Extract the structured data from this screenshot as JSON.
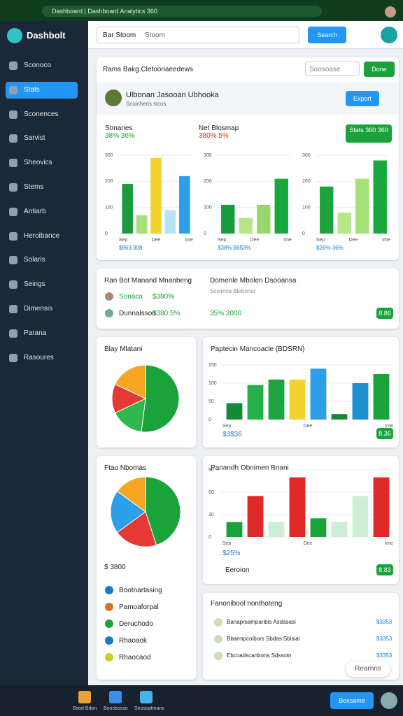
{
  "browser": {
    "url": "Dashboard | Dashboard Analytics 360"
  },
  "sidebar": {
    "logo": "Dashbolt",
    "items": [
      "Sconoco",
      "Stats",
      "Sconences",
      "Sarvist",
      "Sheovics",
      "Stems",
      "Antiarb",
      "Heroibance",
      "Solaris",
      "Seings",
      "Dimensis",
      "Parana",
      "Rasoures"
    ]
  },
  "topbar": {
    "search_label": "Bar Stoom",
    "search_placeholder": "Stoom",
    "search_button": "Search"
  },
  "overview": {
    "breadcrumb": "Rams Bakg Cletooriaeedews",
    "filter_placeholder": "Soosoase",
    "done": "Done",
    "profile_name": "Ulbonan Jasooan Ubhooka",
    "profile_sub": "Scuicheris sicus",
    "export": "Export",
    "legend": [
      {
        "name": "Sonaries",
        "values": "38% 36%"
      },
      {
        "name": "Net Blosmap",
        "values": "380% 5%"
      }
    ],
    "badge": "Stats 360 360",
    "charts": [
      {
        "ylim": [
          0,
          300
        ],
        "yticks": [
          0,
          100,
          200,
          300
        ],
        "values": [
          190,
          70,
          290,
          90,
          220
        ],
        "colors": [
          "#1a9c3e",
          "#a8e07a",
          "#f2d22e",
          "#b7e3f5",
          "#2d9ee8"
        ],
        "x_labels": [
          "Sep",
          "Dee",
          "Ime"
        ],
        "footer": "$863 308"
      },
      {
        "ylim": [
          0,
          300
        ],
        "yticks": [
          0,
          100,
          200,
          300
        ],
        "values": [
          110,
          60,
          110,
          210
        ],
        "colors": [
          "#1a9c3e",
          "#b6e58a",
          "#9bd66b",
          "#18a83e"
        ],
        "x_labels": [
          "Sep",
          "Dee",
          "Ime"
        ],
        "footer": "$38% $6$3%"
      },
      {
        "ylim": [
          0,
          300
        ],
        "yticks": [
          0,
          100,
          200,
          300
        ],
        "values": [
          180,
          80,
          210,
          280
        ],
        "colors": [
          "#1ea33e",
          "#b6e58a",
          "#a6e07a",
          "#18a83e"
        ],
        "x_labels": [
          "Sep",
          "Dee",
          "Ime"
        ],
        "footer": "$26% 36%"
      }
    ]
  },
  "managers": {
    "title": "Ran Bot Manand Mnanbeng",
    "rows": [
      {
        "name": "Sonaca",
        "value": "$380%"
      },
      {
        "name": "Dunnalsson",
        "value": "$380 5%"
      }
    ],
    "right_title": "Domenle Mbolen Dsooansa",
    "right_sub": "Scoimoa Blebonot",
    "right_value": "35% 3000",
    "badge": "8.86"
  },
  "pie_card": {
    "title": "Blay Mlatani",
    "values": [
      52,
      16,
      14,
      18
    ],
    "colors": [
      "#1aa33a",
      "#2fb84d",
      "#e53935",
      "#f5a623"
    ]
  },
  "bar_card": {
    "title": "Paptecin Mancoacle (BDSRN)",
    "ylim": [
      0,
      150
    ],
    "yticks": [
      0,
      50,
      100,
      150
    ],
    "values": [
      45,
      95,
      110,
      110,
      140,
      15,
      100,
      125
    ],
    "colors": [
      "#138a3a",
      "#25b14a",
      "#1fa540",
      "#f2d22e",
      "#2d9ee8",
      "#138a3a",
      "#1b8fcf",
      "#1aa33a"
    ],
    "x_labels": [
      "Sep",
      "Dee",
      "Ime"
    ],
    "footer": "$3$36",
    "badge": "8.36"
  },
  "donut_card": {
    "title": "Ftao Nbomas",
    "values": [
      45,
      20,
      20,
      15
    ],
    "colors": [
      "#1aa33a",
      "#e53935",
      "#2d9ee8",
      "#f5a623"
    ],
    "total": "$ 3800",
    "items": [
      "Bootnartasing",
      "Pamoaforpal",
      "Deruchodo",
      "Rhaoaok",
      "Rhaocaod"
    ]
  },
  "trend_card": {
    "title": "Panandh Obnimen Bnani",
    "ylim": [
      0,
      90
    ],
    "yticks": [
      0,
      30,
      60,
      90
    ],
    "values": [
      20,
      55,
      20,
      80,
      25,
      20,
      55,
      80
    ],
    "colors": [
      "#1aa33a",
      "#e02a2a",
      "#cdeed2",
      "#e02a2a",
      "#1aa33a",
      "#cdeed2",
      "#cdeed2",
      "#e02a2a"
    ],
    "x_labels": [
      "Sep",
      "Dee",
      "Ime"
    ],
    "footer": "$25%",
    "action": "Eeroion",
    "badge": "8.83"
  },
  "activity": {
    "title": "Fanonibool nonthoteng",
    "rows": [
      {
        "label": "Banaprsamparibis Asdasasi",
        "value": "$3353"
      },
      {
        "label": "Bbarmpcoibors Sbdas Sbisiai",
        "value": "$3353"
      },
      {
        "label": "Ebcoadscanbons Sdssotn",
        "value": "$3353"
      }
    ],
    "toast": "Rearnns"
  },
  "taskbar": {
    "apps": [
      "Bsod Bdon",
      "Boosbosso",
      "Seosoatmans"
    ],
    "button": "Boxsame"
  }
}
